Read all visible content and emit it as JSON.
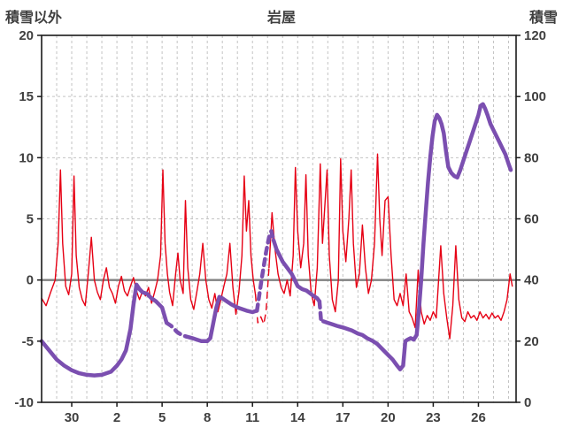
{
  "header": {
    "left_axis_title": "積雪以外",
    "title": "岩屋",
    "right_axis_title": "積雪"
  },
  "chart_data": {
    "type": "line",
    "title": "岩屋",
    "left_axis_label": "積雪以外",
    "right_axis_label": "積雪",
    "x_axis": {
      "range": [
        0,
        31.5
      ],
      "tick_positions": [
        2,
        5,
        8,
        11,
        14,
        17,
        20,
        23,
        26,
        29
      ],
      "tick_labels": [
        "30",
        "2",
        "5",
        "8",
        "11",
        "14",
        "17",
        "20",
        "23",
        "26"
      ],
      "minor_grid_step": 1
    },
    "left_axis": {
      "range": [
        -10,
        20
      ],
      "ticks": [
        -10,
        -5,
        0,
        5,
        10,
        15,
        20
      ]
    },
    "right_axis": {
      "range": [
        0,
        120
      ],
      "ticks": [
        0,
        20,
        40,
        60,
        80,
        100,
        120
      ]
    },
    "grid_color": "#c3c3c3",
    "zero_line_color": "#808080",
    "border_color": "#1a1a1a",
    "text_color": "#3f3f3f",
    "series": [
      {
        "name": "積雪以外",
        "axis": "left",
        "color": "#e60014",
        "width": 1.4,
        "dashed_ranges": [
          [
            14.2,
            15.0
          ]
        ],
        "points": [
          [
            0,
            -1.5
          ],
          [
            0.3,
            -2.1
          ],
          [
            0.6,
            -1
          ],
          [
            0.9,
            0
          ],
          [
            1.1,
            3
          ],
          [
            1.25,
            9
          ],
          [
            1.4,
            3
          ],
          [
            1.6,
            -0.5
          ],
          [
            1.8,
            -1.2
          ],
          [
            2.0,
            0.5
          ],
          [
            2.15,
            8.5
          ],
          [
            2.3,
            2
          ],
          [
            2.5,
            -0.6
          ],
          [
            2.7,
            -1.6
          ],
          [
            2.9,
            -2.1
          ],
          [
            3.1,
            0.5
          ],
          [
            3.3,
            3.5
          ],
          [
            3.5,
            0
          ],
          [
            3.7,
            -1
          ],
          [
            3.9,
            -1.6
          ],
          [
            4.1,
            0
          ],
          [
            4.3,
            1
          ],
          [
            4.5,
            -0.6
          ],
          [
            4.7,
            -1.1
          ],
          [
            4.9,
            -1.9
          ],
          [
            5.1,
            -0.5
          ],
          [
            5.3,
            0.3
          ],
          [
            5.5,
            -0.9
          ],
          [
            5.7,
            -1.3
          ],
          [
            5.9,
            -0.5
          ],
          [
            6.1,
            0.2
          ],
          [
            6.3,
            -0.9
          ],
          [
            6.5,
            -1.6
          ],
          [
            6.7,
            -0.9
          ],
          [
            6.9,
            -1.3
          ],
          [
            7.1,
            -0.6
          ],
          [
            7.3,
            -1.9
          ],
          [
            7.5,
            -1
          ],
          [
            7.7,
            0
          ],
          [
            7.9,
            2
          ],
          [
            8.05,
            9
          ],
          [
            8.2,
            3
          ],
          [
            8.35,
            0.5
          ],
          [
            8.5,
            -1
          ],
          [
            8.7,
            -2.1
          ],
          [
            8.9,
            0.5
          ],
          [
            9.05,
            2.2
          ],
          [
            9.2,
            0
          ],
          [
            9.4,
            -1.1
          ],
          [
            9.55,
            6.5
          ],
          [
            9.7,
            1
          ],
          [
            9.9,
            -1.6
          ],
          [
            10.1,
            -2.4
          ],
          [
            10.3,
            -1
          ],
          [
            10.5,
            0.5
          ],
          [
            10.7,
            3
          ],
          [
            10.9,
            0
          ],
          [
            11.1,
            -1.6
          ],
          [
            11.3,
            -2.3
          ],
          [
            11.5,
            -1.1
          ],
          [
            11.7,
            -2.6
          ],
          [
            11.9,
            -1.6
          ],
          [
            12.1,
            -0.5
          ],
          [
            12.3,
            0.5
          ],
          [
            12.5,
            3
          ],
          [
            12.7,
            -0.6
          ],
          [
            12.9,
            -2.8
          ],
          [
            13.1,
            -1
          ],
          [
            13.3,
            2
          ],
          [
            13.45,
            8.5
          ],
          [
            13.6,
            4
          ],
          [
            13.75,
            6.5
          ],
          [
            13.9,
            2
          ],
          [
            14.05,
            0
          ],
          [
            14.2,
            -1.2
          ],
          [
            14.35,
            -3.5
          ],
          [
            14.55,
            -3
          ],
          [
            14.75,
            -3.6
          ],
          [
            14.9,
            -2.6
          ],
          [
            15.1,
            1
          ],
          [
            15.3,
            5.5
          ],
          [
            15.5,
            2.5
          ],
          [
            15.7,
            0.5
          ],
          [
            15.9,
            -0.6
          ],
          [
            16.1,
            -1.1
          ],
          [
            16.3,
            0
          ],
          [
            16.5,
            -1.3
          ],
          [
            16.7,
            2
          ],
          [
            16.85,
            9.2
          ],
          [
            17,
            4
          ],
          [
            17.2,
            1
          ],
          [
            17.4,
            3
          ],
          [
            17.55,
            8.6
          ],
          [
            17.7,
            2
          ],
          [
            17.9,
            -1.1
          ],
          [
            18.1,
            -2.1
          ],
          [
            18.3,
            1
          ],
          [
            18.5,
            9.5
          ],
          [
            18.65,
            3
          ],
          [
            18.8,
            6
          ],
          [
            18.95,
            9
          ],
          [
            19.1,
            2
          ],
          [
            19.3,
            -1.6
          ],
          [
            19.5,
            -2.6
          ],
          [
            19.7,
            0
          ],
          [
            19.85,
            9.9
          ],
          [
            20,
            4
          ],
          [
            20.2,
            1.5
          ],
          [
            20.4,
            5
          ],
          [
            20.55,
            9
          ],
          [
            20.7,
            3
          ],
          [
            20.9,
            -0.6
          ],
          [
            21.1,
            0.5
          ],
          [
            21.3,
            4.5
          ],
          [
            21.5,
            1
          ],
          [
            21.7,
            -1.1
          ],
          [
            21.9,
            0
          ],
          [
            22.1,
            3
          ],
          [
            22.3,
            10.3
          ],
          [
            22.45,
            5
          ],
          [
            22.6,
            2
          ],
          [
            22.8,
            6.5
          ],
          [
            23,
            6.8
          ],
          [
            23.2,
            2
          ],
          [
            23.4,
            -1.6
          ],
          [
            23.6,
            -2.1
          ],
          [
            23.8,
            -1.1
          ],
          [
            24,
            -2.1
          ],
          [
            24.2,
            0.5
          ],
          [
            24.4,
            -2.6
          ],
          [
            24.6,
            -3.1
          ],
          [
            24.8,
            -3.9
          ],
          [
            25,
            0.8
          ],
          [
            25.2,
            -2.6
          ],
          [
            25.4,
            -3.6
          ],
          [
            25.6,
            -2.9
          ],
          [
            25.8,
            -3.3
          ],
          [
            26,
            -2.6
          ],
          [
            26.2,
            -3.1
          ],
          [
            26.5,
            2.8
          ],
          [
            26.7,
            -1.1
          ],
          [
            26.9,
            -3.1
          ],
          [
            27.1,
            -4.8
          ],
          [
            27.3,
            -2.1
          ],
          [
            27.5,
            2.8
          ],
          [
            27.7,
            -1.6
          ],
          [
            27.9,
            -3.1
          ],
          [
            28.1,
            -3.4
          ],
          [
            28.3,
            -2.6
          ],
          [
            28.5,
            -3.1
          ],
          [
            28.7,
            -2.9
          ],
          [
            28.9,
            -3.3
          ],
          [
            29.1,
            -2.6
          ],
          [
            29.3,
            -3.1
          ],
          [
            29.5,
            -2.8
          ],
          [
            29.7,
            -3.2
          ],
          [
            29.9,
            -2.7
          ],
          [
            30.1,
            -3.1
          ],
          [
            30.3,
            -2.9
          ],
          [
            30.5,
            -3.3
          ],
          [
            30.7,
            -2.6
          ],
          [
            30.9,
            -1.6
          ],
          [
            31.1,
            0.5
          ],
          [
            31.25,
            -0.5
          ]
        ]
      },
      {
        "name": "積雪",
        "axis": "right",
        "color": "#7b4fb0",
        "width": 4.5,
        "dashed_ranges": [
          [
            8.2,
            9.7
          ],
          [
            14.3,
            15.4
          ],
          [
            18.4,
            18.65
          ]
        ],
        "points": [
          [
            0,
            20
          ],
          [
            0.5,
            17
          ],
          [
            1,
            14
          ],
          [
            1.5,
            12
          ],
          [
            2,
            10.5
          ],
          [
            2.5,
            9.5
          ],
          [
            3,
            9
          ],
          [
            3.5,
            8.8
          ],
          [
            4,
            9
          ],
          [
            4.3,
            9.5
          ],
          [
            4.6,
            10
          ],
          [
            5,
            12
          ],
          [
            5.3,
            14
          ],
          [
            5.6,
            17
          ],
          [
            5.9,
            24
          ],
          [
            6.1,
            32
          ],
          [
            6.3,
            38.5
          ],
          [
            6.5,
            37
          ],
          [
            6.7,
            36
          ],
          [
            7,
            35.5
          ],
          [
            7.3,
            34
          ],
          [
            7.6,
            33
          ],
          [
            8,
            31
          ],
          [
            8.3,
            26
          ],
          [
            8.6,
            25
          ],
          [
            9,
            23
          ],
          [
            9.3,
            22
          ],
          [
            9.6,
            21.5
          ],
          [
            10,
            21
          ],
          [
            10.3,
            20.5
          ],
          [
            10.6,
            20
          ],
          [
            11,
            20
          ],
          [
            11.2,
            21
          ],
          [
            11.4,
            26
          ],
          [
            11.6,
            31
          ],
          [
            11.8,
            34.5
          ],
          [
            12,
            34
          ],
          [
            12.3,
            33
          ],
          [
            12.6,
            32
          ],
          [
            13,
            31
          ],
          [
            13.3,
            30.5
          ],
          [
            13.6,
            30
          ],
          [
            14,
            29.5
          ],
          [
            14.3,
            30
          ],
          [
            14.6,
            40
          ],
          [
            14.9,
            49
          ],
          [
            15.1,
            54
          ],
          [
            15.25,
            56
          ],
          [
            15.4,
            53
          ],
          [
            15.6,
            50
          ],
          [
            15.8,
            48
          ],
          [
            16,
            46
          ],
          [
            16.3,
            44
          ],
          [
            16.6,
            42
          ],
          [
            17,
            38
          ],
          [
            17.3,
            37
          ],
          [
            17.6,
            36.5
          ],
          [
            18,
            35
          ],
          [
            18.3,
            34
          ],
          [
            18.45,
            33
          ],
          [
            18.55,
            27
          ],
          [
            18.7,
            26.5
          ],
          [
            19,
            26
          ],
          [
            19.3,
            25.5
          ],
          [
            19.6,
            25
          ],
          [
            20,
            24.5
          ],
          [
            20.3,
            24
          ],
          [
            20.6,
            23.5
          ],
          [
            21,
            22.5
          ],
          [
            21.3,
            22
          ],
          [
            21.6,
            21
          ],
          [
            22,
            20
          ],
          [
            22.3,
            19
          ],
          [
            22.6,
            17.5
          ],
          [
            23,
            15.5
          ],
          [
            23.3,
            14
          ],
          [
            23.6,
            12
          ],
          [
            23.8,
            10.8
          ],
          [
            24,
            12
          ],
          [
            24.15,
            20
          ],
          [
            24.3,
            20.5
          ],
          [
            24.5,
            21
          ],
          [
            24.7,
            20.5
          ],
          [
            24.9,
            22
          ],
          [
            25.05,
            30
          ],
          [
            25.2,
            40
          ],
          [
            25.35,
            52
          ],
          [
            25.5,
            62
          ],
          [
            25.65,
            72
          ],
          [
            25.8,
            80
          ],
          [
            25.95,
            87
          ],
          [
            26.1,
            92
          ],
          [
            26.25,
            94
          ],
          [
            26.4,
            93
          ],
          [
            26.55,
            91
          ],
          [
            26.7,
            88
          ],
          [
            26.85,
            82
          ],
          [
            27,
            77
          ],
          [
            27.2,
            75
          ],
          [
            27.4,
            74
          ],
          [
            27.6,
            73.5
          ],
          [
            27.8,
            76
          ],
          [
            28,
            79
          ],
          [
            28.2,
            82
          ],
          [
            28.4,
            85
          ],
          [
            28.6,
            88
          ],
          [
            28.8,
            91
          ],
          [
            29,
            94
          ],
          [
            29.15,
            97
          ],
          [
            29.3,
            97.5
          ],
          [
            29.45,
            96
          ],
          [
            29.6,
            94
          ],
          [
            29.8,
            91
          ],
          [
            30,
            89
          ],
          [
            30.2,
            87
          ],
          [
            30.4,
            85
          ],
          [
            30.6,
            83
          ],
          [
            30.8,
            81
          ],
          [
            31,
            78
          ],
          [
            31.15,
            76
          ]
        ]
      }
    ]
  }
}
